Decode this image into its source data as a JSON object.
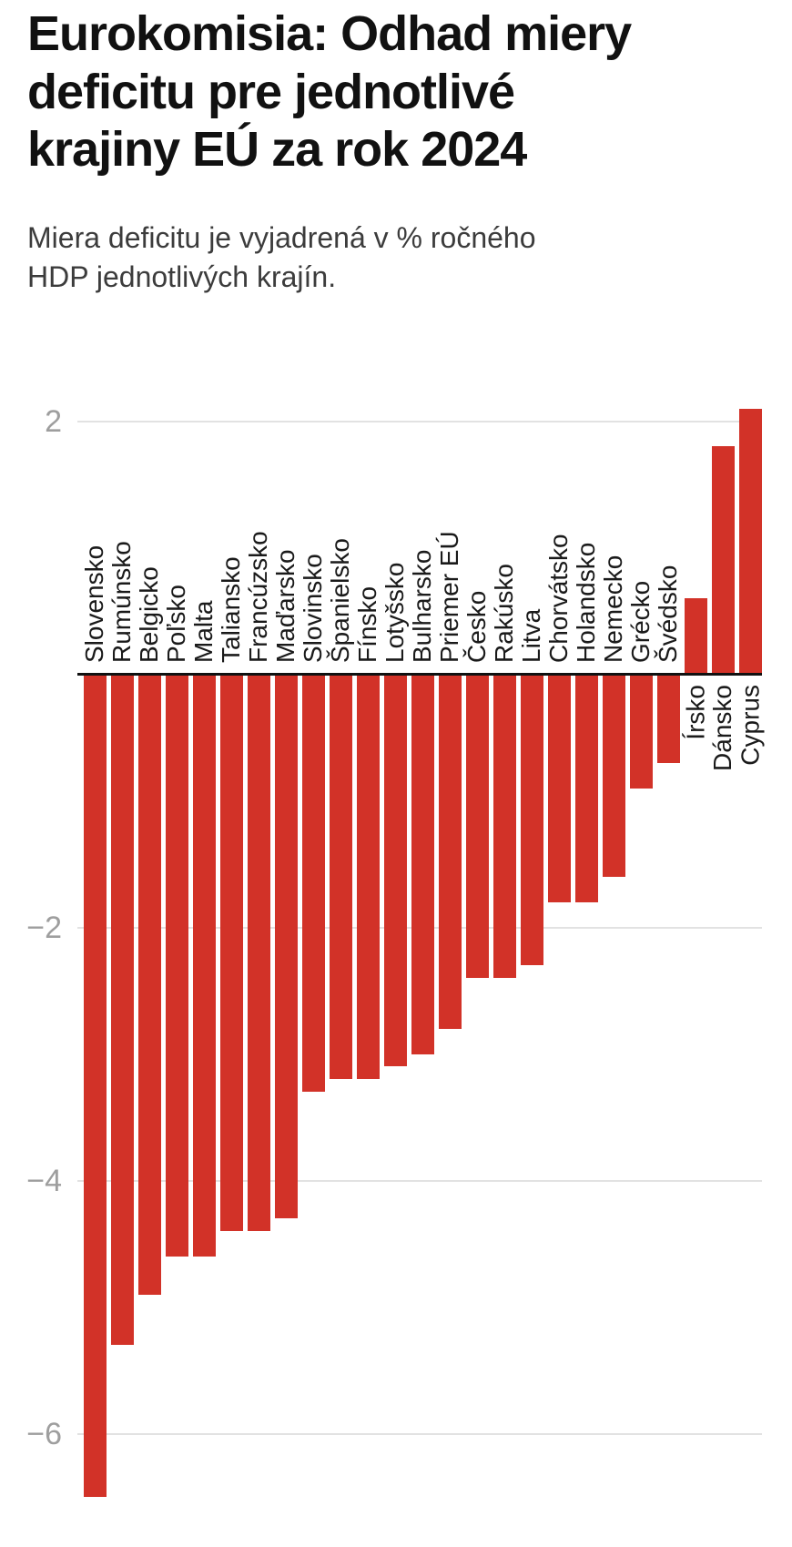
{
  "header": {
    "title": "Eurokomisia: Odhad miery\ndeficitu pre jednotlivé\nkrajiny EÚ za rok 2024",
    "subtitle": "Miera deficitu je vyjadrená v % ročného\nHDP jednotlivých krajín."
  },
  "chart_data": {
    "type": "bar",
    "title": "Eurokomisia: Odhad miery deficitu pre jednotlivé krajiny EÚ za rok 2024",
    "subtitle": "Miera deficitu je vyjadrená v % ročného HDP jednotlivých krajín.",
    "categories": [
      "Slovensko",
      "Rumúnsko",
      "Belgicko",
      "Poľsko",
      "Malta",
      "Taliansko",
      "Francúzsko",
      "Maďarsko",
      "Slovinsko",
      "Španielsko",
      "Fínsko",
      "Lotyšsko",
      "Bulharsko",
      "Priemer EÚ",
      "Česko",
      "Rakúsko",
      "Litva",
      "Chorvátsko",
      "Holandsko",
      "Nemecko",
      "Grécko",
      "Švédsko",
      "Írsko",
      "Dánsko",
      "Cyprus"
    ],
    "values": [
      -6.5,
      -5.3,
      -4.9,
      -4.6,
      -4.6,
      -4.4,
      -4.4,
      -4.3,
      -3.3,
      -3.2,
      -3.2,
      -3.1,
      -3.0,
      -2.8,
      -2.4,
      -2.4,
      -2.3,
      -1.8,
      -1.8,
      -1.6,
      -0.9,
      -0.7,
      0.6,
      1.8,
      2.1
    ],
    "unit": "% HDP",
    "xlabel": "",
    "ylabel": "",
    "yticks": [
      2,
      -2,
      -4,
      -6
    ],
    "ylim": [
      -6.9,
      2.3
    ],
    "grid": true,
    "legend": "none",
    "bar_color": "#d23228",
    "axis_color": "#111111",
    "grid_color": "#e2e2e2",
    "tick_color": "#9e9e9e"
  }
}
